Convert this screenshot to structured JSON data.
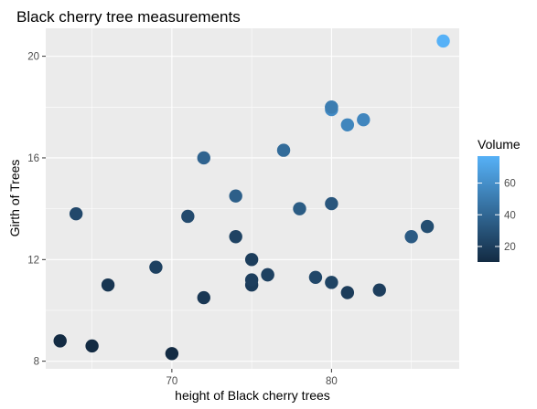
{
  "chart_data": {
    "type": "scatter",
    "title": "Black cherry tree measurements",
    "xlabel": "height of Black cherry trees",
    "ylabel": "Girth of Trees",
    "xlim": [
      62.1,
      88.0
    ],
    "ylim": [
      7.7,
      21.1
    ],
    "x_ticks": [
      70,
      80
    ],
    "y_ticks": [
      8,
      12,
      16,
      20
    ],
    "grid": true,
    "legend": {
      "title": "Volume",
      "position": "right",
      "type": "colorbar",
      "ticks": [
        20,
        40,
        60
      ],
      "range": [
        10.2,
        77.0
      ],
      "colors": {
        "low": "#132B43",
        "high": "#56B1F7"
      }
    },
    "points": [
      {
        "height": 70,
        "girth": 8.3,
        "volume": 10.3
      },
      {
        "height": 65,
        "girth": 8.6,
        "volume": 10.3
      },
      {
        "height": 63,
        "girth": 8.8,
        "volume": 10.2
      },
      {
        "height": 72,
        "girth": 10.5,
        "volume": 16.4
      },
      {
        "height": 81,
        "girth": 10.7,
        "volume": 18.8
      },
      {
        "height": 83,
        "girth": 10.8,
        "volume": 19.7
      },
      {
        "height": 66,
        "girth": 11.0,
        "volume": 15.6
      },
      {
        "height": 75,
        "girth": 11.0,
        "volume": 18.2
      },
      {
        "height": 80,
        "girth": 11.1,
        "volume": 22.6
      },
      {
        "height": 75,
        "girth": 11.2,
        "volume": 19.9
      },
      {
        "height": 79,
        "girth": 11.3,
        "volume": 24.2
      },
      {
        "height": 76,
        "girth": 11.4,
        "volume": 21.0
      },
      {
        "height": 76,
        "girth": 11.4,
        "volume": 21.4
      },
      {
        "height": 69,
        "girth": 11.7,
        "volume": 21.3
      },
      {
        "height": 75,
        "girth": 12.0,
        "volume": 19.1
      },
      {
        "height": 74,
        "girth": 12.9,
        "volume": 22.2
      },
      {
        "height": 85,
        "girth": 12.9,
        "volume": 33.8
      },
      {
        "height": 86,
        "girth": 13.3,
        "volume": 27.4
      },
      {
        "height": 71,
        "girth": 13.7,
        "volume": 25.7
      },
      {
        "height": 64,
        "girth": 13.8,
        "volume": 24.9
      },
      {
        "height": 78,
        "girth": 14.0,
        "volume": 34.5
      },
      {
        "height": 80,
        "girth": 14.2,
        "volume": 31.7
      },
      {
        "height": 74,
        "girth": 14.5,
        "volume": 36.3
      },
      {
        "height": 72,
        "girth": 16.0,
        "volume": 38.3
      },
      {
        "height": 77,
        "girth": 16.3,
        "volume": 42.6
      },
      {
        "height": 81,
        "girth": 17.3,
        "volume": 55.4
      },
      {
        "height": 82,
        "girth": 17.5,
        "volume": 55.7
      },
      {
        "height": 80,
        "girth": 17.9,
        "volume": 58.3
      },
      {
        "height": 80,
        "girth": 18.0,
        "volume": 51.5
      },
      {
        "height": 80,
        "girth": 18.0,
        "volume": 51.0
      },
      {
        "height": 87,
        "girth": 20.6,
        "volume": 77.0
      }
    ]
  }
}
